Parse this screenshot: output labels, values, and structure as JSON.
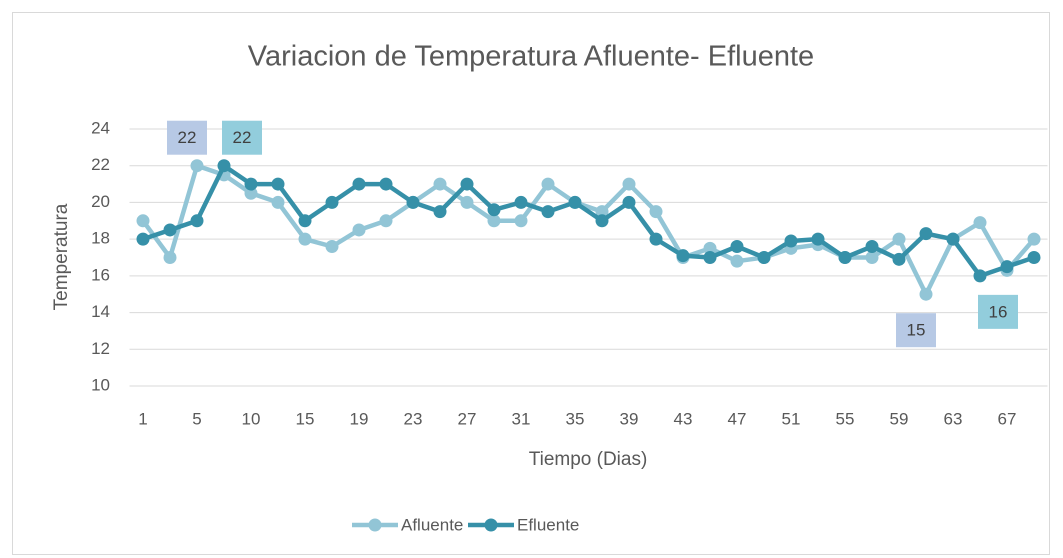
{
  "chart_data": {
    "type": "line",
    "title": "Variacion de Temperatura  Afluente- Efluente",
    "x_label": "Tiempo (Dias)",
    "y_label": "Temperatura",
    "categories": [
      "1",
      null,
      "5",
      null,
      "10",
      null,
      "15",
      null,
      "19",
      null,
      "23",
      null,
      "27",
      null,
      "31",
      null,
      "35",
      null,
      "39",
      null,
      "43",
      null,
      "47",
      null,
      "51",
      null,
      "55",
      null,
      "59",
      null,
      "63",
      null,
      "67",
      null
    ],
    "ylim": [
      10,
      24
    ],
    "yticks": [
      10,
      12,
      14,
      16,
      18,
      20,
      22,
      24
    ],
    "grid": true,
    "legend": "bottom",
    "series": [
      {
        "name": "Afluente",
        "color": "#92c5d6",
        "label_color": "#b7c9e5",
        "values": [
          19,
          17,
          22,
          21.5,
          20.5,
          20,
          18,
          17.6,
          18.5,
          19,
          20,
          21,
          20,
          19,
          19,
          21,
          20,
          19.5,
          21,
          19.5,
          17,
          17.5,
          16.8,
          17,
          17.5,
          17.7,
          17,
          17,
          18,
          15,
          18,
          18.9,
          16.3,
          18
        ],
        "value_labels": [
          null,
          null,
          "22",
          null,
          null,
          null,
          null,
          null,
          null,
          null,
          null,
          null,
          null,
          null,
          null,
          null,
          null,
          null,
          null,
          null,
          null,
          null,
          null,
          null,
          null,
          null,
          null,
          null,
          null,
          "15",
          null,
          null,
          null,
          null
        ]
      },
      {
        "name": "Efluente",
        "color": "#3690a8",
        "label_color": "#92cddc",
        "values": [
          18,
          18.5,
          19,
          22,
          21,
          21,
          19,
          20,
          21,
          21,
          20,
          19.5,
          21,
          19.6,
          20,
          19.5,
          20,
          19,
          20,
          18,
          17.1,
          17,
          17.6,
          17,
          17.9,
          18,
          17,
          17.6,
          16.9,
          18.3,
          18,
          16,
          16.5,
          17
        ],
        "value_labels": [
          null,
          null,
          null,
          "22",
          null,
          null,
          null,
          null,
          null,
          null,
          null,
          null,
          null,
          null,
          null,
          null,
          null,
          null,
          null,
          null,
          null,
          null,
          null,
          null,
          null,
          null,
          null,
          null,
          null,
          null,
          null,
          "16",
          null,
          null
        ]
      }
    ]
  }
}
